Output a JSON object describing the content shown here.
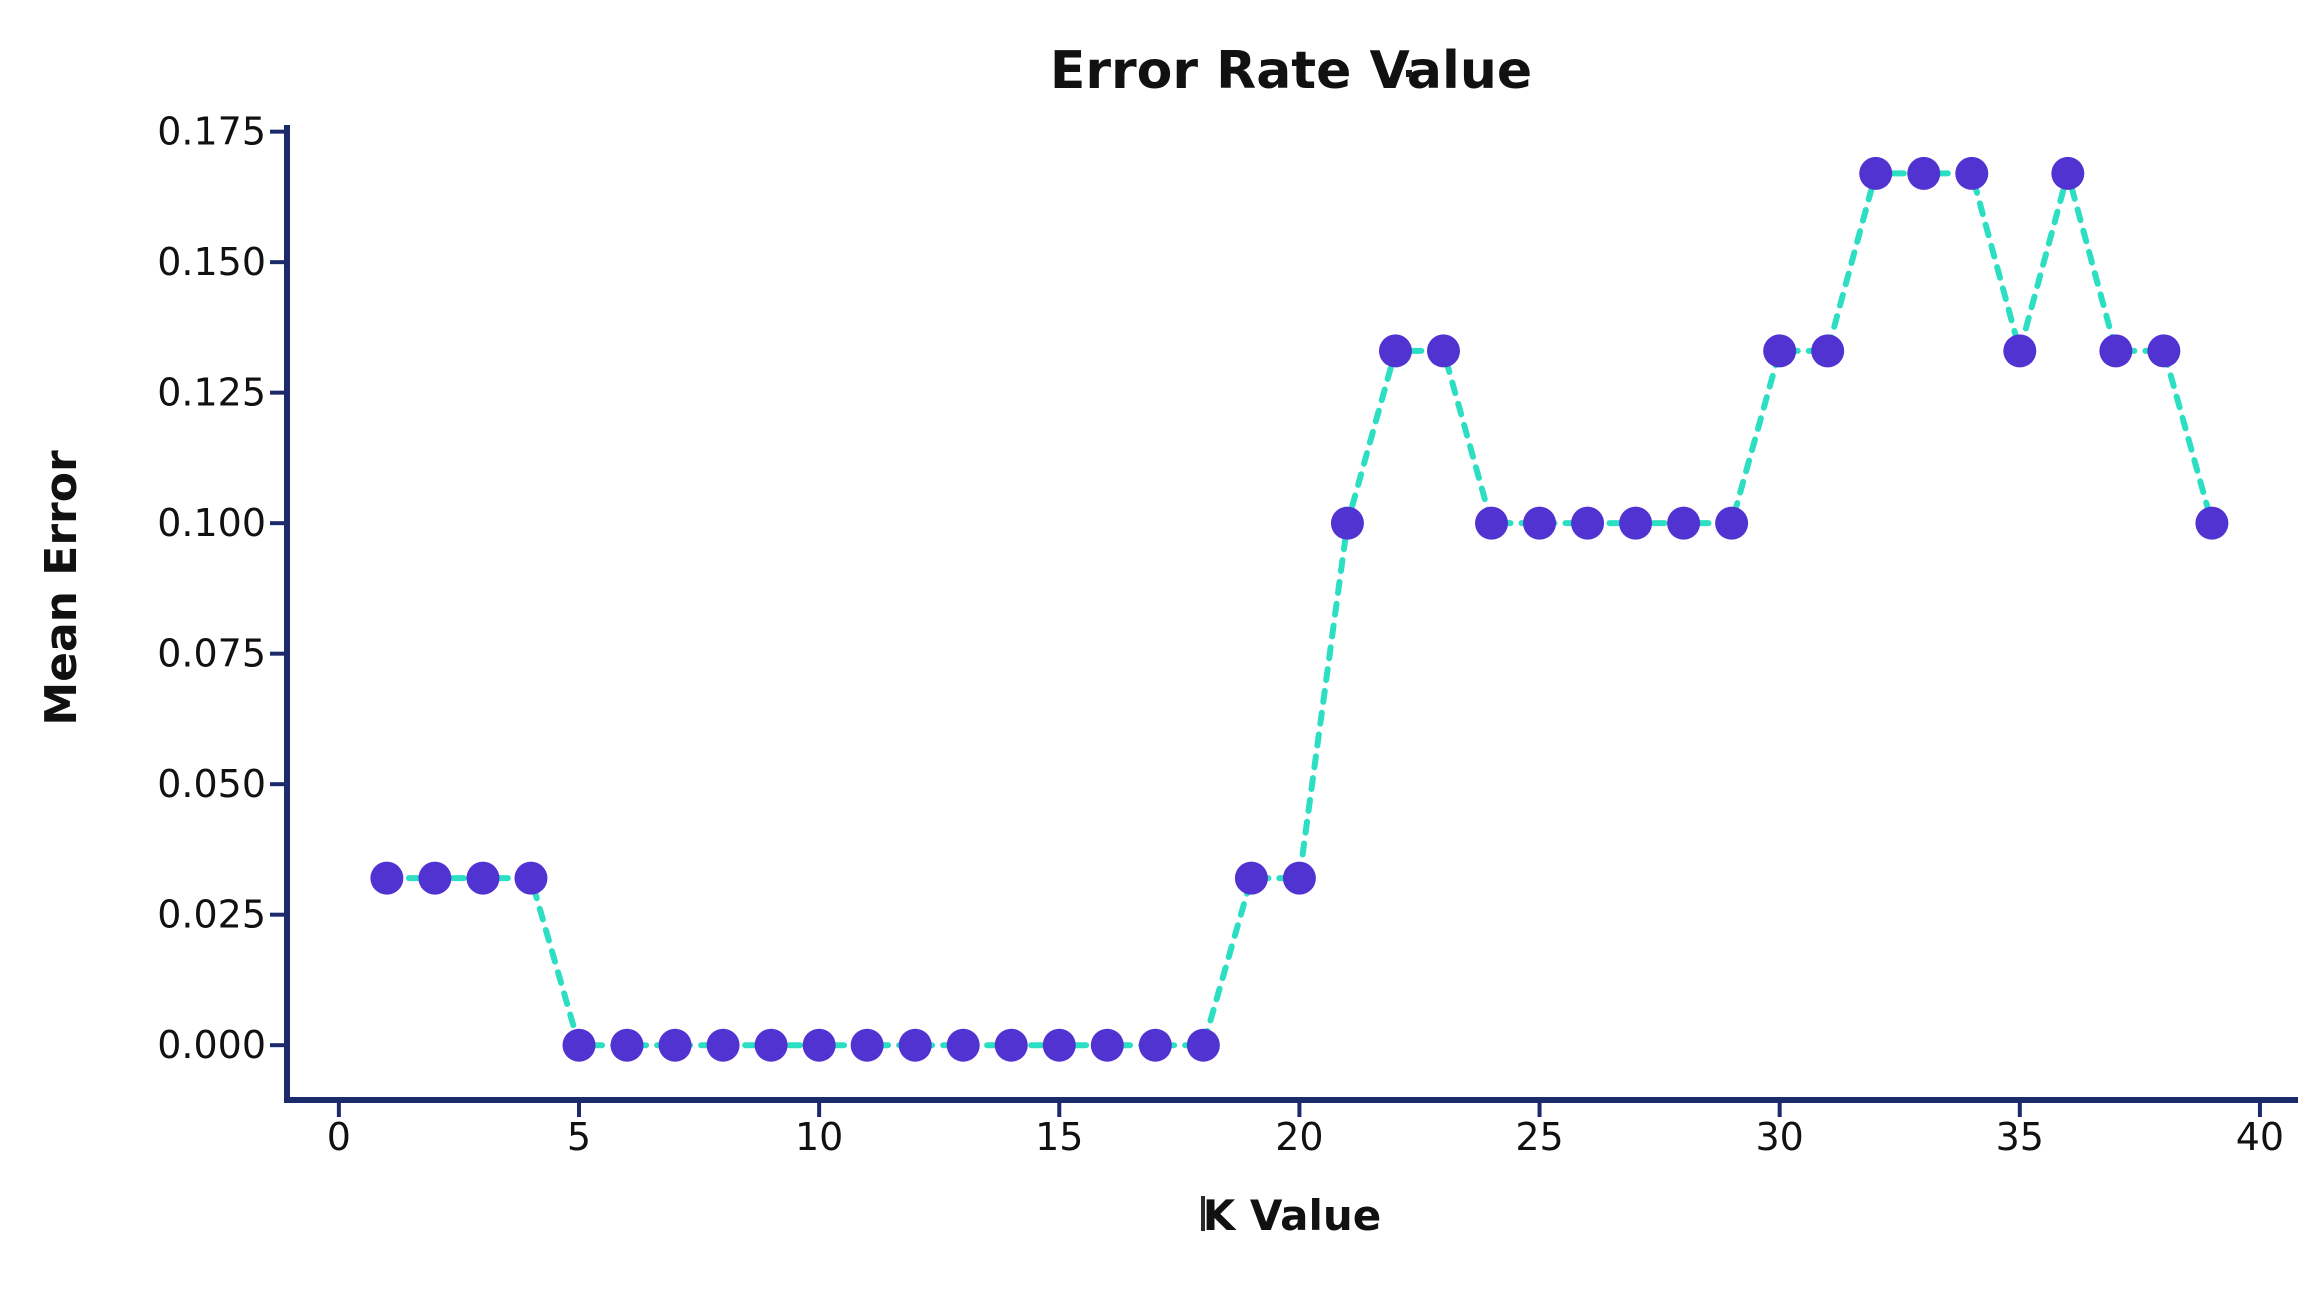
{
  "figure": {
    "title": "Error Rate Value",
    "x_axis_label": "K Value",
    "y_axis_label": "Mean Error"
  },
  "artifacts": {
    "title_cursor_icon": "i-beam-text-cursor",
    "xlabel_cursor_icon": "i-beam-text-cursor"
  },
  "chart_data": {
    "type": "line",
    "title": "Error Rate Value",
    "xlabel": "K Value",
    "ylabel": "Mean Error",
    "line_style": "dashed",
    "marker": "circle",
    "grid": false,
    "legend": null,
    "x": [
      1,
      2,
      3,
      4,
      5,
      6,
      7,
      8,
      9,
      10,
      11,
      12,
      13,
      14,
      15,
      16,
      17,
      18,
      19,
      20,
      21,
      22,
      23,
      24,
      25,
      26,
      27,
      28,
      29,
      30,
      31,
      32,
      33,
      34,
      35,
      36,
      37,
      38,
      39
    ],
    "y": [
      0.032,
      0.032,
      0.032,
      0.032,
      0.0,
      0.0,
      0.0,
      0.0,
      0.0,
      0.0,
      0.0,
      0.0,
      0.0,
      0.0,
      0.0,
      0.0,
      0.0,
      0.0,
      0.032,
      0.032,
      0.1,
      0.133,
      0.133,
      0.1,
      0.1,
      0.1,
      0.1,
      0.1,
      0.1,
      0.133,
      0.133,
      0.167,
      0.167,
      0.167,
      0.133,
      0.167,
      0.133,
      0.133,
      0.1
    ],
    "x_ticks": [
      0,
      5,
      10,
      15,
      20,
      25,
      30,
      35,
      40
    ],
    "x_tick_labels": [
      "0",
      "5",
      "10",
      "15",
      "20",
      "25",
      "30",
      "35",
      "40"
    ],
    "y_ticks": [
      0.0,
      0.025,
      0.05,
      0.075,
      0.1,
      0.125,
      0.15,
      0.175
    ],
    "y_tick_labels": [
      "0.000",
      "0.025",
      "0.050",
      "0.075",
      "0.100",
      "0.125",
      "0.150",
      "0.175"
    ],
    "xlim": [
      -1.08,
      40.73
    ],
    "ylim": [
      -0.0105,
      0.1757
    ],
    "colors": {
      "line": "#2CDFC3",
      "marker": "#5033D0",
      "axis": "#1B2A6B",
      "text": "#111111",
      "background": "#FFFFFF"
    }
  }
}
